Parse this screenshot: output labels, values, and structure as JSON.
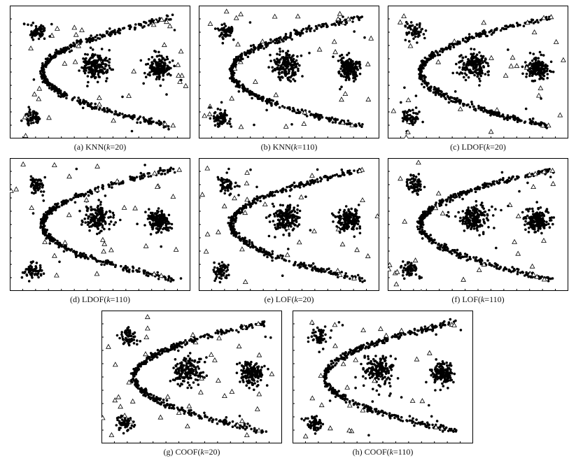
{
  "figure": {
    "panels": [
      {
        "id": "a",
        "name": "panel-a",
        "caption_prefix": "(a) KNN(",
        "param": "k",
        "caption_suffix": "=20)",
        "method": "KNN",
        "k": 20,
        "variant": 1,
        "flip_tail": false
      },
      {
        "id": "b",
        "name": "panel-b",
        "caption_prefix": "(b) KNN(",
        "param": "k",
        "caption_suffix": "=110)",
        "method": "KNN",
        "k": 110,
        "variant": 2,
        "flip_tail": false
      },
      {
        "id": "c",
        "name": "panel-c",
        "caption_prefix": "(c) LDOF(",
        "param": "k",
        "caption_suffix": "=20)",
        "method": "LDOF",
        "k": 20,
        "variant": 3,
        "flip_tail": false
      },
      {
        "id": "d",
        "name": "panel-d",
        "caption_prefix": "(d) LDOF(",
        "param": "k",
        "caption_suffix": "=110)",
        "method": "LDOF",
        "k": 110,
        "variant": 4,
        "flip_tail": false
      },
      {
        "id": "e",
        "name": "panel-e",
        "caption_prefix": "(e) LOF(",
        "param": "k",
        "caption_suffix": "=20)",
        "method": "LOF",
        "k": 20,
        "variant": 5,
        "flip_tail": false
      },
      {
        "id": "f",
        "name": "panel-f",
        "caption_prefix": "(f) LOF(",
        "param": "k",
        "caption_suffix": "=110)",
        "method": "LOF",
        "k": 110,
        "variant": 6,
        "flip_tail": true
      },
      {
        "id": "g",
        "name": "panel-g",
        "caption_prefix": "(g) COOF(",
        "param": "k",
        "caption_suffix": "=20)",
        "method": "COOF",
        "k": 20,
        "variant": 7,
        "flip_tail": false
      },
      {
        "id": "h",
        "name": "panel-h",
        "caption_prefix": "(h) COOF(",
        "param": "k",
        "caption_suffix": "=110)",
        "method": "COOF",
        "k": 110,
        "variant": 8,
        "flip_tail": false
      }
    ]
  },
  "chart_data": {
    "type": "scatter",
    "description_series": [
      {
        "name": "normal points",
        "marker": "filled-dot",
        "color": "#000000"
      },
      {
        "name": "detected outliers",
        "marker": "hollow-triangle",
        "color": "#000000"
      }
    ],
    "clusters": [
      {
        "name": "upper-left cluster",
        "center": [
          0.14,
          0.82
        ],
        "spread": 0.03
      },
      {
        "name": "lower-left cluster",
        "center": [
          0.11,
          0.14
        ],
        "spread": 0.03
      },
      {
        "name": "middle cluster",
        "center": [
          0.48,
          0.55
        ],
        "spread": 0.05
      },
      {
        "name": "right cluster",
        "center": [
          0.84,
          0.53
        ],
        "spread": 0.04
      }
    ],
    "parabola": {
      "vertex": [
        0.17,
        0.5
      ],
      "x_end": 0.92,
      "half_height": 0.43
    },
    "xlim": [
      0,
      1
    ],
    "ylim": [
      0,
      1
    ],
    "grid": false,
    "axis_ticks": "unlabeled"
  }
}
